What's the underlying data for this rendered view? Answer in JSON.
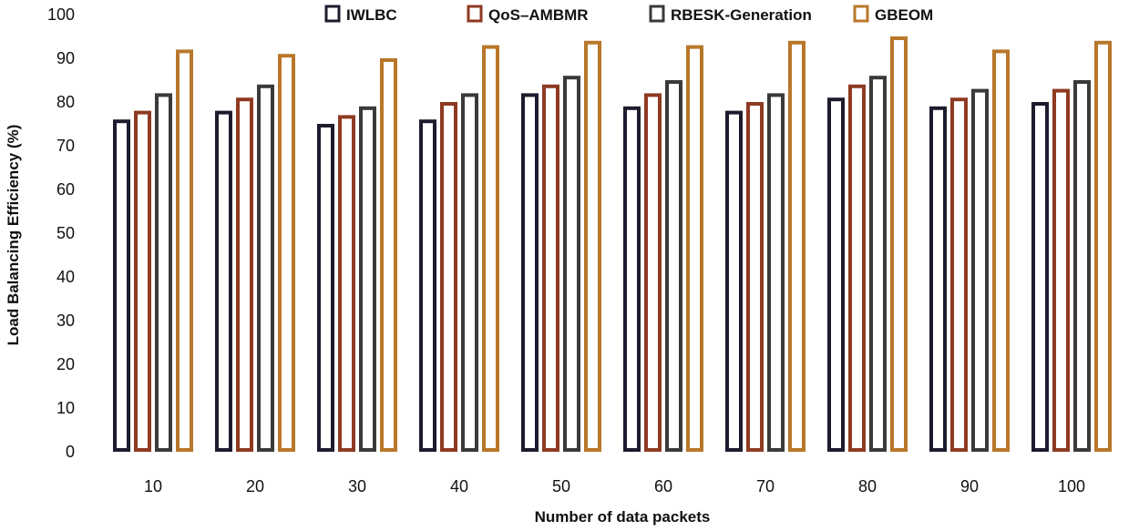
{
  "chart_data": {
    "type": "bar",
    "title": "",
    "xlabel": "Number of data packets",
    "ylabel": "Load Balancing Efficiency (%)",
    "ylim": [
      0,
      100
    ],
    "yticks": [
      0,
      10,
      20,
      30,
      40,
      50,
      60,
      70,
      80,
      90,
      100
    ],
    "categories": [
      "10",
      "20",
      "30",
      "40",
      "50",
      "60",
      "70",
      "80",
      "90",
      "100"
    ],
    "grid": false,
    "legend_position": "top",
    "series": [
      {
        "name": "IWLBC",
        "values": [
          76,
          78,
          75,
          76,
          82,
          79,
          78,
          81,
          79,
          80
        ],
        "edge_color": "#1c1c2e",
        "inner_color": "#ffffff"
      },
      {
        "name": "QoS–AMBMR",
        "values": [
          78,
          81,
          77,
          80,
          84,
          82,
          80,
          84,
          81,
          83
        ],
        "edge_color": "#8e3a22",
        "inner_color": "#ffffff"
      },
      {
        "name": "RBESK-Generation",
        "values": [
          82,
          84,
          79,
          82,
          86,
          85,
          82,
          86,
          83,
          85
        ],
        "edge_color": "#3a3a3a",
        "inner_color": "#ffffff"
      },
      {
        "name": "GBEOM",
        "values": [
          92,
          91,
          90,
          93,
          94,
          93,
          94,
          95,
          92,
          94
        ],
        "edge_color": "#b8772a",
        "inner_color": "#ffffff"
      }
    ]
  }
}
